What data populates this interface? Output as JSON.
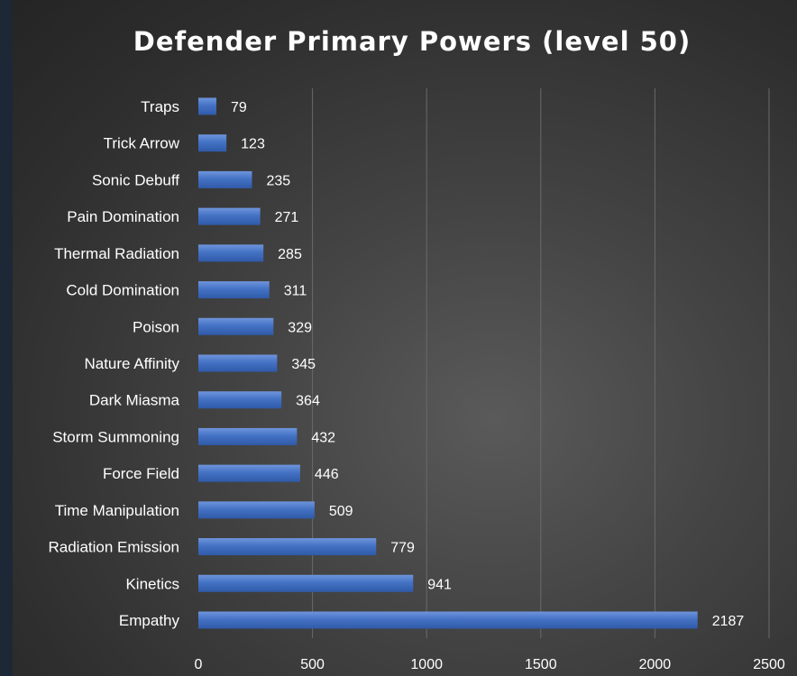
{
  "chart_data": {
    "type": "bar",
    "orientation": "horizontal",
    "title": "Defender Primary  Powers (level 50)",
    "categories": [
      "Traps",
      "Trick Arrow",
      "Sonic Debuff",
      "Pain Domination",
      "Thermal Radiation",
      "Cold Domination",
      "Poison",
      "Nature Affinity",
      "Dark Miasma",
      "Storm Summoning",
      "Force Field",
      "Time Manipulation",
      "Radiation Emission",
      "Kinetics",
      "Empathy"
    ],
    "values": [
      79,
      123,
      235,
      271,
      285,
      311,
      329,
      345,
      364,
      432,
      446,
      509,
      779,
      941,
      2187
    ],
    "xlim": [
      0,
      2500
    ],
    "xticks": [
      0,
      500,
      1000,
      1500,
      2000,
      2500
    ],
    "xlabel": "",
    "ylabel": "",
    "grid": true,
    "colors": {
      "bar": "#4472c4",
      "bar_highlight": "#6f95dc",
      "text": "#ffffff",
      "grid": "#6a6a6a"
    }
  }
}
